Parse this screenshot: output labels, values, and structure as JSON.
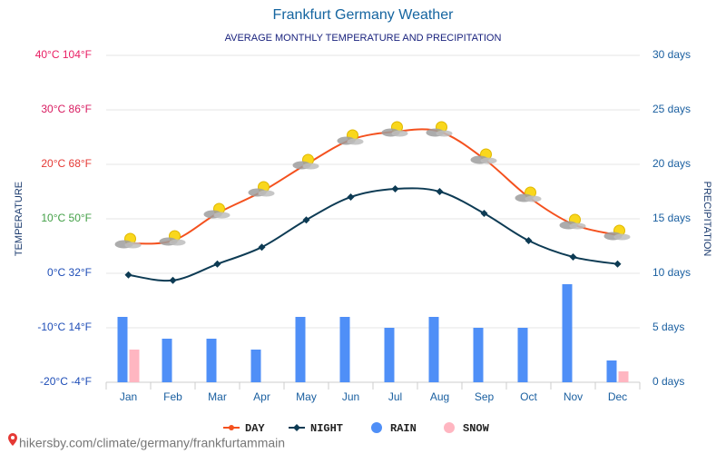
{
  "chart_data": {
    "type": "combo",
    "title": "Frankfurt Germany Weather",
    "subtitle": "AVERAGE MONTHLY TEMPERATURE AND PRECIPITATION",
    "y_label": "TEMPERATURE",
    "y2_label": "PRECIPITATION",
    "categories": [
      "Jan",
      "Feb",
      "Mar",
      "Apr",
      "May",
      "Jun",
      "Jul",
      "Aug",
      "Sep",
      "Oct",
      "Nov",
      "Dec"
    ],
    "series": [
      {
        "name": "DAY",
        "type": "line",
        "color": "#f4511e",
        "values": [
          5.5,
          6,
          11,
          15,
          20,
          24.5,
          26,
          26,
          21,
          14,
          9,
          7
        ]
      },
      {
        "name": "NIGHT",
        "type": "line",
        "color": "#0d3b54",
        "values": [
          -0.3,
          -1.3,
          1.7,
          4.8,
          9.8,
          14,
          15.5,
          15,
          11,
          6,
          3,
          1.7
        ]
      },
      {
        "name": "RAIN",
        "type": "bar",
        "axis": "y2",
        "color": "#4f8ff7",
        "values": [
          6,
          4,
          4,
          3,
          6,
          6,
          5,
          6,
          5,
          5,
          9,
          2
        ]
      },
      {
        "name": "SNOW",
        "type": "bar",
        "axis": "y2",
        "color": "#ffb6c1",
        "values": [
          3,
          0,
          0,
          0,
          0,
          0,
          0,
          0,
          0,
          0,
          0,
          1
        ]
      }
    ],
    "ylim": [
      -20,
      40
    ],
    "yticks": [
      {
        "value": -20,
        "label": "-20°C -4°F"
      },
      {
        "value": -10,
        "label": "-10°C 14°F"
      },
      {
        "value": 0,
        "label": "0°C 32°F"
      },
      {
        "value": 10,
        "label": "10°C 50°F"
      },
      {
        "value": 20,
        "label": "20°C 68°F"
      },
      {
        "value": 30,
        "label": "30°C 86°F"
      },
      {
        "value": 40,
        "label": "40°C 104°F"
      }
    ],
    "ytick_colors": [
      "#1e4db7",
      "#1e4db7",
      "#1e4db7",
      "#43a047",
      "#e53935",
      "#d81b60",
      "#e91e63"
    ],
    "y2lim": [
      0,
      30
    ],
    "y2ticks": [
      {
        "value": 0,
        "label": "0 days"
      },
      {
        "value": 5,
        "label": "5 days"
      },
      {
        "value": 10,
        "label": "10 days"
      },
      {
        "value": 15,
        "label": "15 days"
      },
      {
        "value": 20,
        "label": "20 days"
      },
      {
        "value": 25,
        "label": "25 days"
      },
      {
        "value": 30,
        "label": "30 days"
      }
    ],
    "grid": true,
    "legend": "bottom",
    "source": "hikersby.com/climate/germany/frankfurtammain"
  }
}
